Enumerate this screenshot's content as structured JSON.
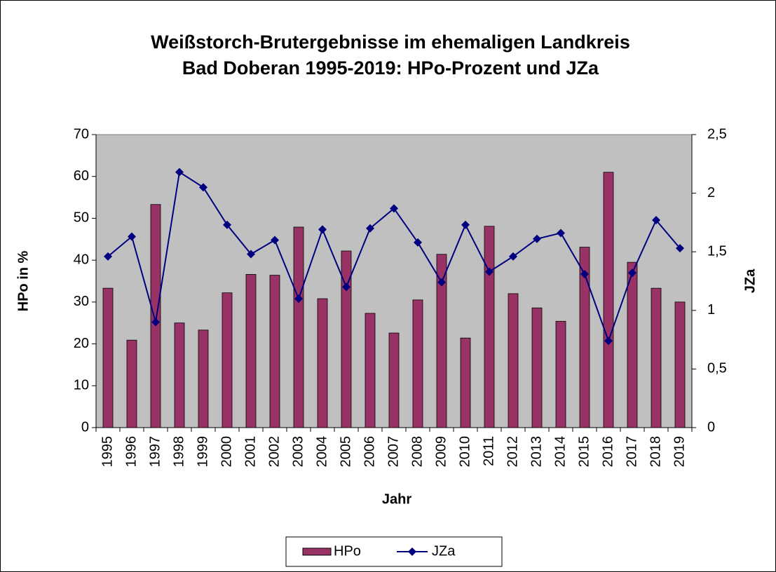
{
  "chart_data": {
    "type": "bar_line",
    "title": [
      "Weißstorch-Brutergebnisse im ehemaligen Landkreis",
      "Bad Doberan 1995-2019: HPo-Prozent und JZa"
    ],
    "x_label": "Jahr",
    "y_label": "HPo in %",
    "y2_label": "JZa",
    "categories": [
      "1995",
      "1996",
      "1997",
      "1998",
      "1999",
      "2000",
      "2001",
      "2002",
      "2003",
      "2004",
      "2005",
      "2006",
      "2007",
      "2008",
      "2009",
      "2010",
      "2011",
      "2012",
      "2013",
      "2014",
      "2015",
      "2016",
      "2017",
      "2018",
      "2019"
    ],
    "series": [
      {
        "name": "HPo",
        "type": "bar",
        "color": "#993366",
        "values": [
          33.3,
          20.9,
          53.3,
          25,
          23.3,
          32.2,
          36.6,
          36.4,
          47.9,
          30.8,
          42.2,
          27.3,
          22.6,
          30.5,
          41.4,
          21.4,
          48.1,
          32,
          28.6,
          25.4,
          43.1,
          61,
          39.5,
          33.3,
          30
        ]
      },
      {
        "name": "JZa",
        "type": "line",
        "axis": "y2",
        "color": "#000080",
        "values": [
          1.46,
          1.63,
          0.9,
          2.18,
          2.05,
          1.73,
          1.48,
          1.6,
          1.1,
          1.69,
          1.2,
          1.7,
          1.87,
          1.58,
          1.24,
          1.73,
          1.33,
          1.46,
          1.61,
          1.66,
          1.31,
          0.74,
          1.32,
          1.77,
          1.53
        ]
      }
    ],
    "ylim": [
      0,
      70
    ],
    "yticks": [
      0,
      10,
      20,
      30,
      40,
      50,
      60,
      70
    ],
    "y2lim": [
      0,
      2.5
    ],
    "y2ticks": [
      0,
      {
        "value": 0.5,
        "label": "0,5"
      },
      1,
      {
        "value": 1.5,
        "label": "1,5"
      },
      2,
      {
        "value": 2.5,
        "label": "2,5"
      }
    ],
    "legend": "bottom",
    "plot_background": "#c0c0c0"
  }
}
